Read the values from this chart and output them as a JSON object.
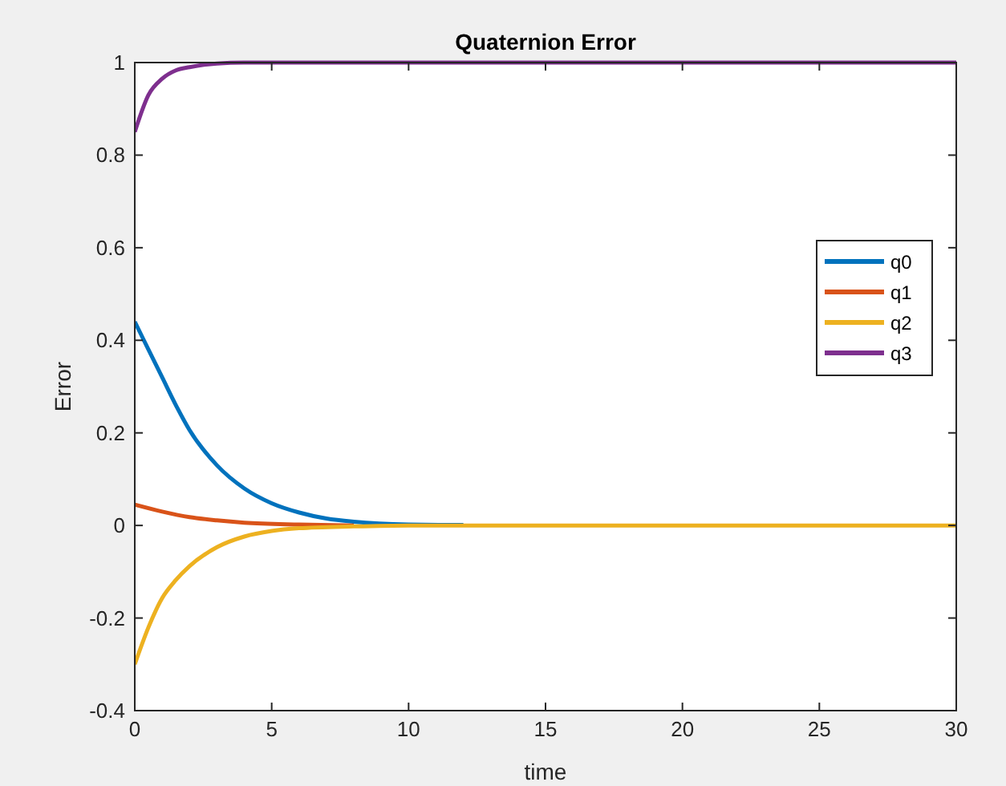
{
  "chart_data": {
    "type": "line",
    "title": "Quaternion Error",
    "xlabel": "time",
    "ylabel": "Error",
    "xlim": [
      0,
      30
    ],
    "xticks": [
      0,
      5,
      10,
      15,
      20,
      25,
      30
    ],
    "ylim": [
      -0.4,
      1
    ],
    "yticks": [
      -0.4,
      -0.2,
      0,
      0.2,
      0.4,
      0.6,
      0.8,
      1
    ],
    "legend": "right",
    "grid": false,
    "series": [
      {
        "name": "q0",
        "color": "#0072bd",
        "x": [
          0,
          0.5,
          1,
          1.5,
          2,
          3,
          4,
          5,
          6,
          7,
          8,
          10,
          12
        ],
        "values": [
          0.44,
          0.38,
          0.32,
          0.26,
          0.206,
          0.13,
          0.08,
          0.048,
          0.028,
          0.015,
          0.008,
          0.002,
          0.001
        ]
      },
      {
        "name": "q1",
        "color": "#d95319",
        "x": [
          0,
          1,
          2,
          3,
          4,
          6,
          8
        ],
        "values": [
          0.045,
          0.03,
          0.018,
          0.011,
          0.006,
          0.002,
          0
        ]
      },
      {
        "name": "q2",
        "color": "#edb120",
        "x": [
          0,
          0.5,
          1,
          1.5,
          2,
          3,
          4,
          5,
          6,
          8,
          10,
          15,
          20,
          25,
          30
        ],
        "values": [
          -0.3,
          -0.22,
          -0.157,
          -0.118,
          -0.088,
          -0.047,
          -0.024,
          -0.012,
          -0.006,
          -0.002,
          0,
          0,
          0,
          0,
          0
        ]
      },
      {
        "name": "q3",
        "color": "#7e2f8e",
        "x": [
          0,
          0.5,
          1,
          1.5,
          2,
          3,
          4,
          5,
          10,
          15,
          20,
          25,
          30
        ],
        "values": [
          0.85,
          0.93,
          0.965,
          0.983,
          0.99,
          0.998,
          1,
          1,
          1,
          1,
          1,
          1,
          1
        ]
      }
    ]
  }
}
